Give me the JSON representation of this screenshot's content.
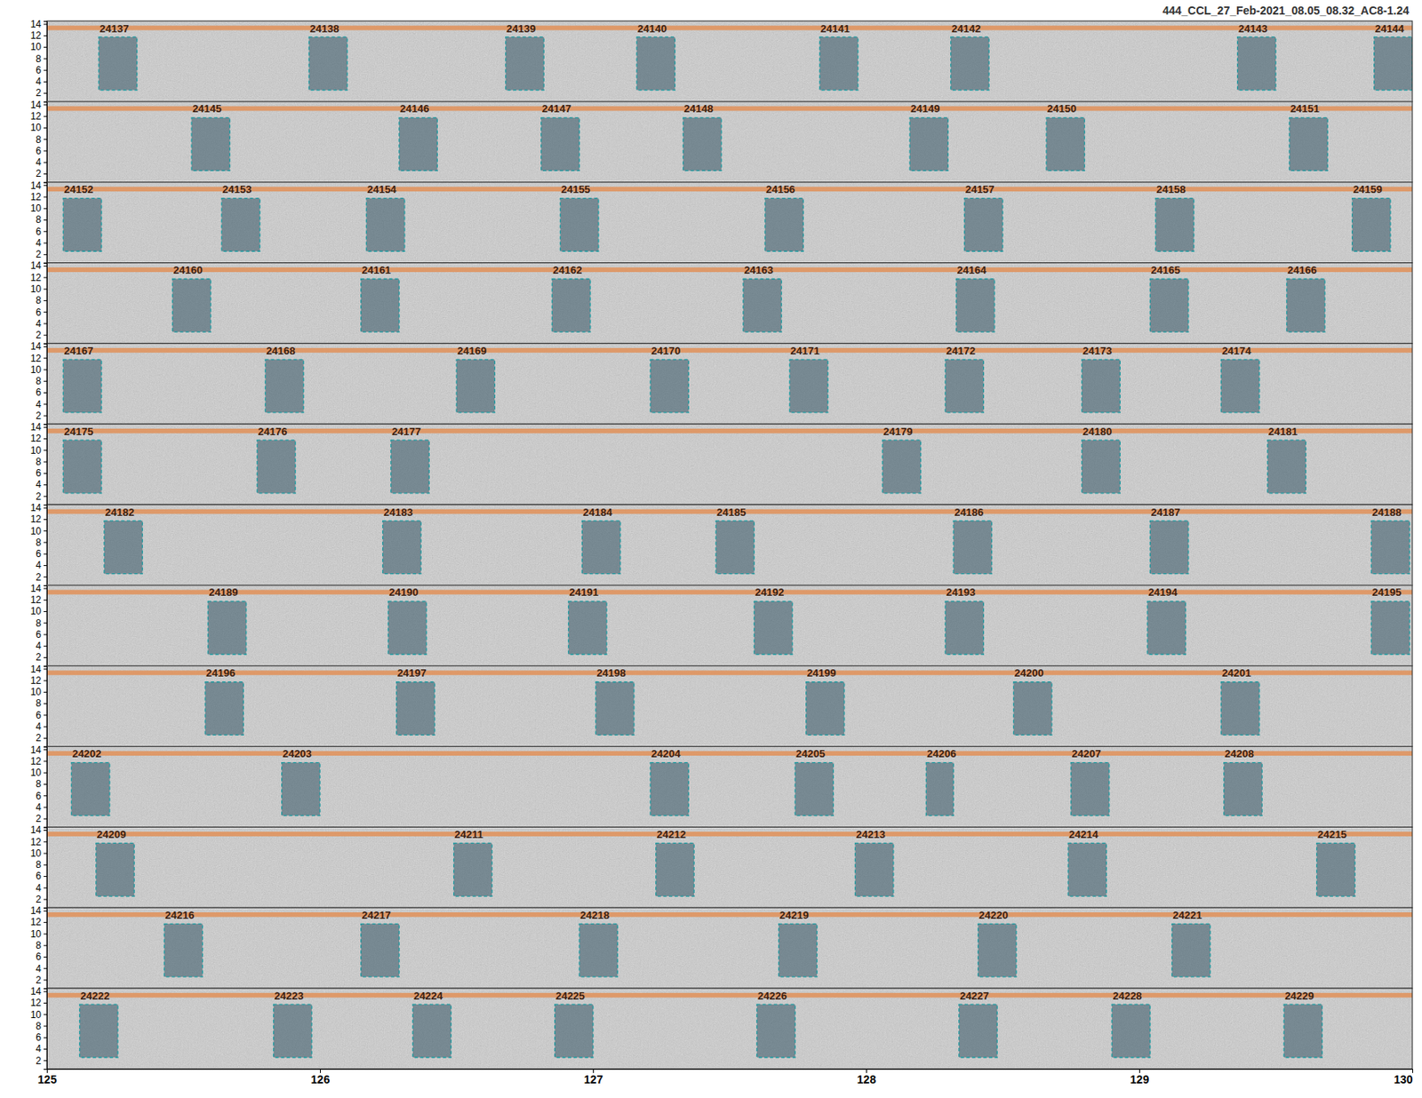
{
  "chart_data": {
    "type": "spectrogram",
    "title": "444_CCL_27_Feb-2021_08.05_08.32_AC8-1.24",
    "xlim": [
      125,
      130
    ],
    "xticks": [
      125,
      126,
      127,
      128,
      129,
      130
    ],
    "ylim": [
      0.5,
      14.5
    ],
    "yticks": [
      2,
      4,
      6,
      8,
      10,
      12,
      14
    ],
    "band": [
      12.9,
      13.7
    ],
    "rows": [
      {
        "boxes": [
          {
            "label": "24137",
            "start": 125.19,
            "end": 125.33,
            "low": 2.5,
            "high": 11.7
          },
          {
            "label": "24138",
            "start": 125.96,
            "end": 126.1,
            "low": 2.5,
            "high": 11.7
          },
          {
            "label": "24139",
            "start": 126.68,
            "end": 126.82,
            "low": 2.5,
            "high": 11.7
          },
          {
            "label": "24140",
            "start": 127.16,
            "end": 127.3,
            "low": 2.5,
            "high": 11.7
          },
          {
            "label": "24141",
            "start": 127.83,
            "end": 127.97,
            "low": 2.5,
            "high": 11.7
          },
          {
            "label": "24142",
            "start": 128.31,
            "end": 128.45,
            "low": 2.5,
            "high": 11.7
          },
          {
            "label": "24143",
            "start": 129.36,
            "end": 129.5,
            "low": 2.5,
            "high": 11.7
          },
          {
            "label": "24144",
            "start": 129.86,
            "end": 130.0,
            "low": 2.5,
            "high": 11.7
          }
        ]
      },
      {
        "boxes": [
          {
            "label": "24145",
            "start": 125.53,
            "end": 125.67,
            "low": 2.5,
            "high": 11.7
          },
          {
            "label": "24146",
            "start": 126.29,
            "end": 126.43,
            "low": 2.5,
            "high": 11.7
          },
          {
            "label": "24147",
            "start": 126.81,
            "end": 126.95,
            "low": 2.5,
            "high": 11.7
          },
          {
            "label": "24148",
            "start": 127.33,
            "end": 127.47,
            "low": 2.5,
            "high": 11.7
          },
          {
            "label": "24149",
            "start": 128.16,
            "end": 128.3,
            "low": 2.5,
            "high": 11.7
          },
          {
            "label": "24150",
            "start": 128.66,
            "end": 128.8,
            "low": 2.5,
            "high": 11.7
          },
          {
            "label": "24151",
            "start": 129.55,
            "end": 129.69,
            "low": 2.5,
            "high": 11.7
          }
        ]
      },
      {
        "boxes": [
          {
            "label": "24152",
            "start": 125.06,
            "end": 125.2,
            "low": 2.5,
            "high": 11.7
          },
          {
            "label": "24153",
            "start": 125.64,
            "end": 125.78,
            "low": 2.5,
            "high": 11.7
          },
          {
            "label": "24154",
            "start": 126.17,
            "end": 126.31,
            "low": 2.5,
            "high": 11.7
          },
          {
            "label": "24155",
            "start": 126.88,
            "end": 127.02,
            "low": 2.5,
            "high": 11.7
          },
          {
            "label": "24156",
            "start": 127.63,
            "end": 127.77,
            "low": 2.5,
            "high": 11.7
          },
          {
            "label": "24157",
            "start": 128.36,
            "end": 128.5,
            "low": 2.5,
            "high": 11.7
          },
          {
            "label": "24158",
            "start": 129.06,
            "end": 129.2,
            "low": 2.5,
            "high": 11.7
          },
          {
            "label": "24159",
            "start": 129.78,
            "end": 129.92,
            "low": 2.5,
            "high": 11.7
          }
        ]
      },
      {
        "boxes": [
          {
            "label": "24160",
            "start": 125.46,
            "end": 125.6,
            "low": 2.5,
            "high": 11.7
          },
          {
            "label": "24161",
            "start": 126.15,
            "end": 126.29,
            "low": 2.5,
            "high": 11.7
          },
          {
            "label": "24162",
            "start": 126.85,
            "end": 126.99,
            "low": 2.5,
            "high": 11.7
          },
          {
            "label": "24163",
            "start": 127.55,
            "end": 127.69,
            "low": 2.5,
            "high": 11.7
          },
          {
            "label": "24164",
            "start": 128.33,
            "end": 128.47,
            "low": 2.5,
            "high": 11.7
          },
          {
            "label": "24165",
            "start": 129.04,
            "end": 129.18,
            "low": 2.5,
            "high": 11.7
          },
          {
            "label": "24166",
            "start": 129.54,
            "end": 129.68,
            "low": 2.5,
            "high": 11.7
          }
        ]
      },
      {
        "boxes": [
          {
            "label": "24167",
            "start": 125.06,
            "end": 125.2,
            "low": 2.5,
            "high": 11.7
          },
          {
            "label": "24168",
            "start": 125.8,
            "end": 125.94,
            "low": 2.5,
            "high": 11.7
          },
          {
            "label": "24169",
            "start": 126.5,
            "end": 126.64,
            "low": 2.5,
            "high": 11.7
          },
          {
            "label": "24170",
            "start": 127.21,
            "end": 127.35,
            "low": 2.5,
            "high": 11.7
          },
          {
            "label": "24171",
            "start": 127.72,
            "end": 127.86,
            "low": 2.5,
            "high": 11.7
          },
          {
            "label": "24172",
            "start": 128.29,
            "end": 128.43,
            "low": 2.5,
            "high": 11.7
          },
          {
            "label": "24173",
            "start": 128.79,
            "end": 128.93,
            "low": 2.5,
            "high": 11.7
          },
          {
            "label": "24174",
            "start": 129.3,
            "end": 129.44,
            "low": 2.5,
            "high": 11.7
          }
        ]
      },
      {
        "boxes": [
          {
            "label": "24175",
            "start": 125.06,
            "end": 125.2,
            "low": 2.5,
            "high": 11.7
          },
          {
            "label": "24176",
            "start": 125.77,
            "end": 125.91,
            "low": 2.5,
            "high": 11.7
          },
          {
            "label": "24177",
            "start": 126.26,
            "end": 126.4,
            "low": 2.5,
            "high": 11.7
          },
          {
            "label": "24179",
            "start": 128.06,
            "end": 128.2,
            "low": 2.5,
            "high": 11.7
          },
          {
            "label": "24180",
            "start": 128.79,
            "end": 128.93,
            "low": 2.5,
            "high": 11.7
          },
          {
            "label": "24181",
            "start": 129.47,
            "end": 129.61,
            "low": 2.5,
            "high": 11.7
          }
        ]
      },
      {
        "boxes": [
          {
            "label": "24182",
            "start": 125.21,
            "end": 125.35,
            "low": 2.5,
            "high": 11.7
          },
          {
            "label": "24183",
            "start": 126.23,
            "end": 126.37,
            "low": 2.5,
            "high": 11.7
          },
          {
            "label": "24184",
            "start": 126.96,
            "end": 127.1,
            "low": 2.5,
            "high": 11.7
          },
          {
            "label": "24185",
            "start": 127.45,
            "end": 127.59,
            "low": 2.5,
            "high": 11.7
          },
          {
            "label": "24186",
            "start": 128.32,
            "end": 128.46,
            "low": 2.5,
            "high": 11.7
          },
          {
            "label": "24187",
            "start": 129.04,
            "end": 129.18,
            "low": 2.5,
            "high": 11.7
          },
          {
            "label": "24188",
            "start": 129.85,
            "end": 129.99,
            "low": 2.5,
            "high": 11.7
          }
        ]
      },
      {
        "boxes": [
          {
            "label": "24189",
            "start": 125.59,
            "end": 125.73,
            "low": 2.5,
            "high": 11.7
          },
          {
            "label": "24190",
            "start": 126.25,
            "end": 126.39,
            "low": 2.5,
            "high": 11.7
          },
          {
            "label": "24191",
            "start": 126.91,
            "end": 127.05,
            "low": 2.5,
            "high": 11.7
          },
          {
            "label": "24192",
            "start": 127.59,
            "end": 127.73,
            "low": 2.5,
            "high": 11.7
          },
          {
            "label": "24193",
            "start": 128.29,
            "end": 128.43,
            "low": 2.5,
            "high": 11.7
          },
          {
            "label": "24194",
            "start": 129.03,
            "end": 129.17,
            "low": 2.5,
            "high": 11.7
          },
          {
            "label": "24195",
            "start": 129.85,
            "end": 129.99,
            "low": 2.5,
            "high": 11.7
          }
        ]
      },
      {
        "boxes": [
          {
            "label": "24196",
            "start": 125.58,
            "end": 125.72,
            "low": 2.5,
            "high": 11.7
          },
          {
            "label": "24197",
            "start": 126.28,
            "end": 126.42,
            "low": 2.5,
            "high": 11.7
          },
          {
            "label": "24198",
            "start": 127.01,
            "end": 127.15,
            "low": 2.5,
            "high": 11.7
          },
          {
            "label": "24199",
            "start": 127.78,
            "end": 127.92,
            "low": 2.5,
            "high": 11.7
          },
          {
            "label": "24200",
            "start": 128.54,
            "end": 128.68,
            "low": 2.5,
            "high": 11.7
          },
          {
            "label": "24201",
            "start": 129.3,
            "end": 129.44,
            "low": 2.5,
            "high": 11.7
          }
        ]
      },
      {
        "boxes": [
          {
            "label": "24202",
            "start": 125.09,
            "end": 125.23,
            "low": 2.5,
            "high": 11.7
          },
          {
            "label": "24203",
            "start": 125.86,
            "end": 126.0,
            "low": 2.5,
            "high": 11.7
          },
          {
            "label": "24204",
            "start": 127.21,
            "end": 127.35,
            "low": 2.5,
            "high": 11.7
          },
          {
            "label": "24205",
            "start": 127.74,
            "end": 127.88,
            "low": 2.5,
            "high": 11.7
          },
          {
            "label": "24206",
            "start": 128.22,
            "end": 128.32,
            "low": 2.5,
            "high": 11.7
          },
          {
            "label": "24207",
            "start": 128.75,
            "end": 128.89,
            "low": 2.5,
            "high": 11.7
          },
          {
            "label": "24208",
            "start": 129.31,
            "end": 129.45,
            "low": 2.5,
            "high": 11.7
          }
        ]
      },
      {
        "boxes": [
          {
            "label": "24209",
            "start": 125.18,
            "end": 125.32,
            "low": 2.5,
            "high": 11.7
          },
          {
            "label": "24211",
            "start": 126.49,
            "end": 126.63,
            "low": 2.5,
            "high": 11.7
          },
          {
            "label": "24212",
            "start": 127.23,
            "end": 127.37,
            "low": 2.5,
            "high": 11.7
          },
          {
            "label": "24213",
            "start": 127.96,
            "end": 128.1,
            "low": 2.5,
            "high": 11.7
          },
          {
            "label": "24214",
            "start": 128.74,
            "end": 128.88,
            "low": 2.5,
            "high": 11.7
          },
          {
            "label": "24215",
            "start": 129.65,
            "end": 129.79,
            "low": 2.5,
            "high": 11.7
          }
        ]
      },
      {
        "boxes": [
          {
            "label": "24216",
            "start": 125.43,
            "end": 125.57,
            "low": 2.5,
            "high": 11.7
          },
          {
            "label": "24217",
            "start": 126.15,
            "end": 126.29,
            "low": 2.5,
            "high": 11.7
          },
          {
            "label": "24218",
            "start": 126.95,
            "end": 127.09,
            "low": 2.5,
            "high": 11.7
          },
          {
            "label": "24219",
            "start": 127.68,
            "end": 127.82,
            "low": 2.5,
            "high": 11.7
          },
          {
            "label": "24220",
            "start": 128.41,
            "end": 128.55,
            "low": 2.5,
            "high": 11.7
          },
          {
            "label": "24221",
            "start": 129.12,
            "end": 129.26,
            "low": 2.5,
            "high": 11.7
          }
        ]
      },
      {
        "boxes": [
          {
            "label": "24222",
            "start": 125.12,
            "end": 125.26,
            "low": 2.5,
            "high": 11.7
          },
          {
            "label": "24223",
            "start": 125.83,
            "end": 125.97,
            "low": 2.5,
            "high": 11.7
          },
          {
            "label": "24224",
            "start": 126.34,
            "end": 126.48,
            "low": 2.5,
            "high": 11.7
          },
          {
            "label": "24225",
            "start": 126.86,
            "end": 127.0,
            "low": 2.5,
            "high": 11.7
          },
          {
            "label": "24226",
            "start": 127.6,
            "end": 127.74,
            "low": 2.5,
            "high": 11.7
          },
          {
            "label": "24227",
            "start": 128.34,
            "end": 128.48,
            "low": 2.5,
            "high": 11.7
          },
          {
            "label": "24228",
            "start": 128.9,
            "end": 129.04,
            "low": 2.5,
            "high": 11.7
          },
          {
            "label": "24229",
            "start": 129.53,
            "end": 129.67,
            "low": 2.5,
            "high": 11.7
          }
        ]
      }
    ]
  }
}
